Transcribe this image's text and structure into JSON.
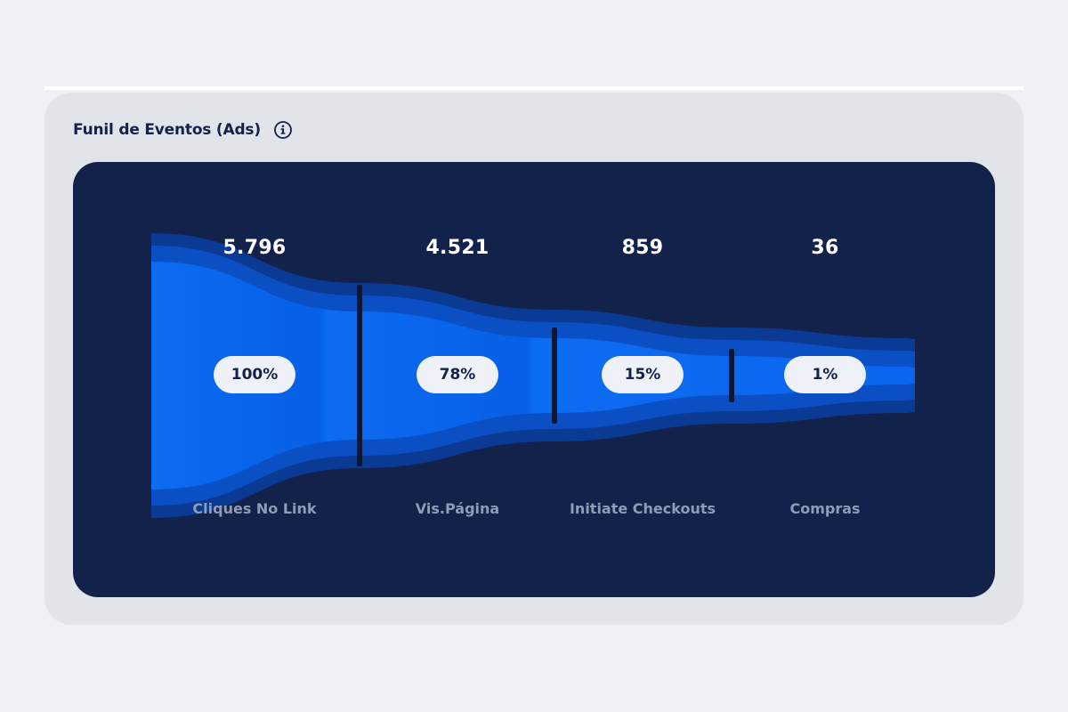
{
  "card": {
    "title": "Funil de Eventos (Ads)",
    "info_icon": "info-circle-icon"
  },
  "colors": {
    "page_bg": "#eff1f5",
    "card_bg": "#e1e4e9",
    "panel_bg": "#13224a",
    "funnel_outer": "#0a3d9c",
    "funnel_mid": "#0a4fc4",
    "funnel_core": "#0c6cf2",
    "divider": "#0d1730",
    "pill_bg": "#eef1f7",
    "label": "#8f9cb6"
  },
  "chart_data": {
    "type": "funnel",
    "title": "Funil de Eventos (Ads)",
    "categories": [
      "Cliques No Link",
      "Vis.Página",
      "Initiate Checkouts",
      "Compras"
    ],
    "values": [
      5796,
      4521,
      859,
      36
    ],
    "value_labels": [
      "5.796",
      "4.521",
      "859",
      "36"
    ],
    "percentages": [
      "100%",
      "78%",
      "15%",
      "1%"
    ]
  }
}
